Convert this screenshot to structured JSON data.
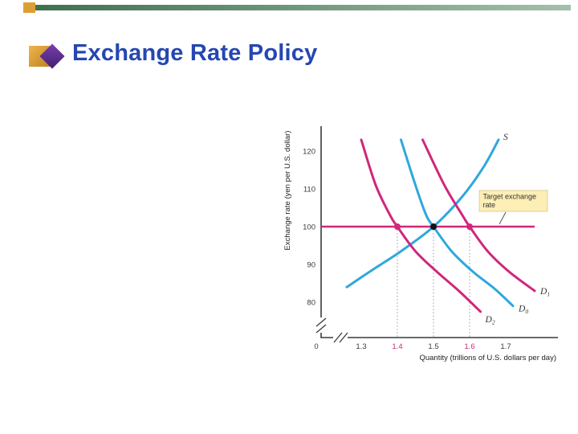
{
  "slide": {
    "title": "Exchange Rate Policy",
    "title_color": "#2547b2",
    "bar_color": "#3e6e4e",
    "bar_color_light": "#a3c0ab",
    "square_color": "#dd9f35",
    "bullet_gold": "#f0b54a",
    "bullet_purple": "#7a3fae"
  },
  "chart_data": {
    "type": "line",
    "title": "",
    "xlabel": "Quantity (trillions of U.S. dollars per day)",
    "ylabel": "Exchange rate (yen per U.S. dollar)",
    "origin_label": "0",
    "xlim": [
      1.3,
      1.7
    ],
    "ylim": [
      80,
      120
    ],
    "grid": false,
    "x_ticks": [
      {
        "value": 1.3,
        "label": "1.3",
        "highlight": false
      },
      {
        "value": 1.4,
        "label": "1.4",
        "highlight": true
      },
      {
        "value": 1.5,
        "label": "1.5",
        "highlight": false
      },
      {
        "value": 1.6,
        "label": "1.6",
        "highlight": true
      },
      {
        "value": 1.7,
        "label": "1.7",
        "highlight": false
      }
    ],
    "y_ticks": [
      {
        "value": 80,
        "label": "80"
      },
      {
        "value": 90,
        "label": "90"
      },
      {
        "value": 100,
        "label": "100"
      },
      {
        "value": 110,
        "label": "110"
      },
      {
        "value": 120,
        "label": "120"
      }
    ],
    "colors": {
      "blue": "#2ea8dc",
      "magenta": "#d0277c",
      "black": "#111111",
      "axis": "#3a3a3a",
      "dotted": "#9a9a9a",
      "note_bg": "#fdeeb5",
      "note_border": "#d6c58c",
      "note_text": "#333333"
    },
    "series": [
      {
        "id": "supply-curve-s",
        "name": "S",
        "sub": "",
        "color": "blue",
        "points": [
          [
            1.26,
            84
          ],
          [
            1.33,
            88.5
          ],
          [
            1.41,
            93.5
          ],
          [
            1.5,
            100
          ],
          [
            1.58,
            108
          ],
          [
            1.64,
            116
          ],
          [
            1.68,
            123
          ]
        ],
        "label_offset": [
          6,
          0
        ]
      },
      {
        "id": "demand-curve-d0",
        "name": "D",
        "sub": "0",
        "color": "blue",
        "points": [
          [
            1.41,
            123
          ],
          [
            1.45,
            111
          ],
          [
            1.48,
            103
          ],
          [
            1.5,
            100
          ],
          [
            1.55,
            93.5
          ],
          [
            1.61,
            88
          ],
          [
            1.67,
            83.5
          ],
          [
            1.72,
            79
          ]
        ],
        "label_offset": [
          7,
          7
        ]
      },
      {
        "id": "demand-curve-d1",
        "name": "D",
        "sub": "1",
        "color": "magenta",
        "points": [
          [
            1.47,
            123
          ],
          [
            1.53,
            111
          ],
          [
            1.58,
            103
          ],
          [
            1.6,
            100
          ],
          [
            1.65,
            93.5
          ],
          [
            1.71,
            88
          ],
          [
            1.78,
            83
          ]
        ],
        "label_offset": [
          7,
          4
        ]
      },
      {
        "id": "demand-curve-d2",
        "name": "D",
        "sub": "2",
        "color": "magenta",
        "points": [
          [
            1.3,
            123
          ],
          [
            1.34,
            111
          ],
          [
            1.38,
            103
          ],
          [
            1.4,
            100
          ],
          [
            1.45,
            93.5
          ],
          [
            1.51,
            88
          ],
          [
            1.57,
            83
          ],
          [
            1.63,
            77.5
          ]
        ],
        "label_offset": [
          6,
          13
        ]
      }
    ],
    "target_line": {
      "y": 100,
      "x_end": 1.78,
      "color": "magenta",
      "note_lines": [
        "Target exchange",
        "rate"
      ]
    },
    "markers": [
      {
        "x": 1.4,
        "y": 100,
        "color": "magenta"
      },
      {
        "x": 1.5,
        "y": 100,
        "color": "black"
      },
      {
        "x": 1.6,
        "y": 100,
        "color": "magenta"
      }
    ],
    "dropline_xs": [
      1.4,
      1.5,
      1.6
    ],
    "axis_breaks": [
      "x",
      "y"
    ]
  }
}
